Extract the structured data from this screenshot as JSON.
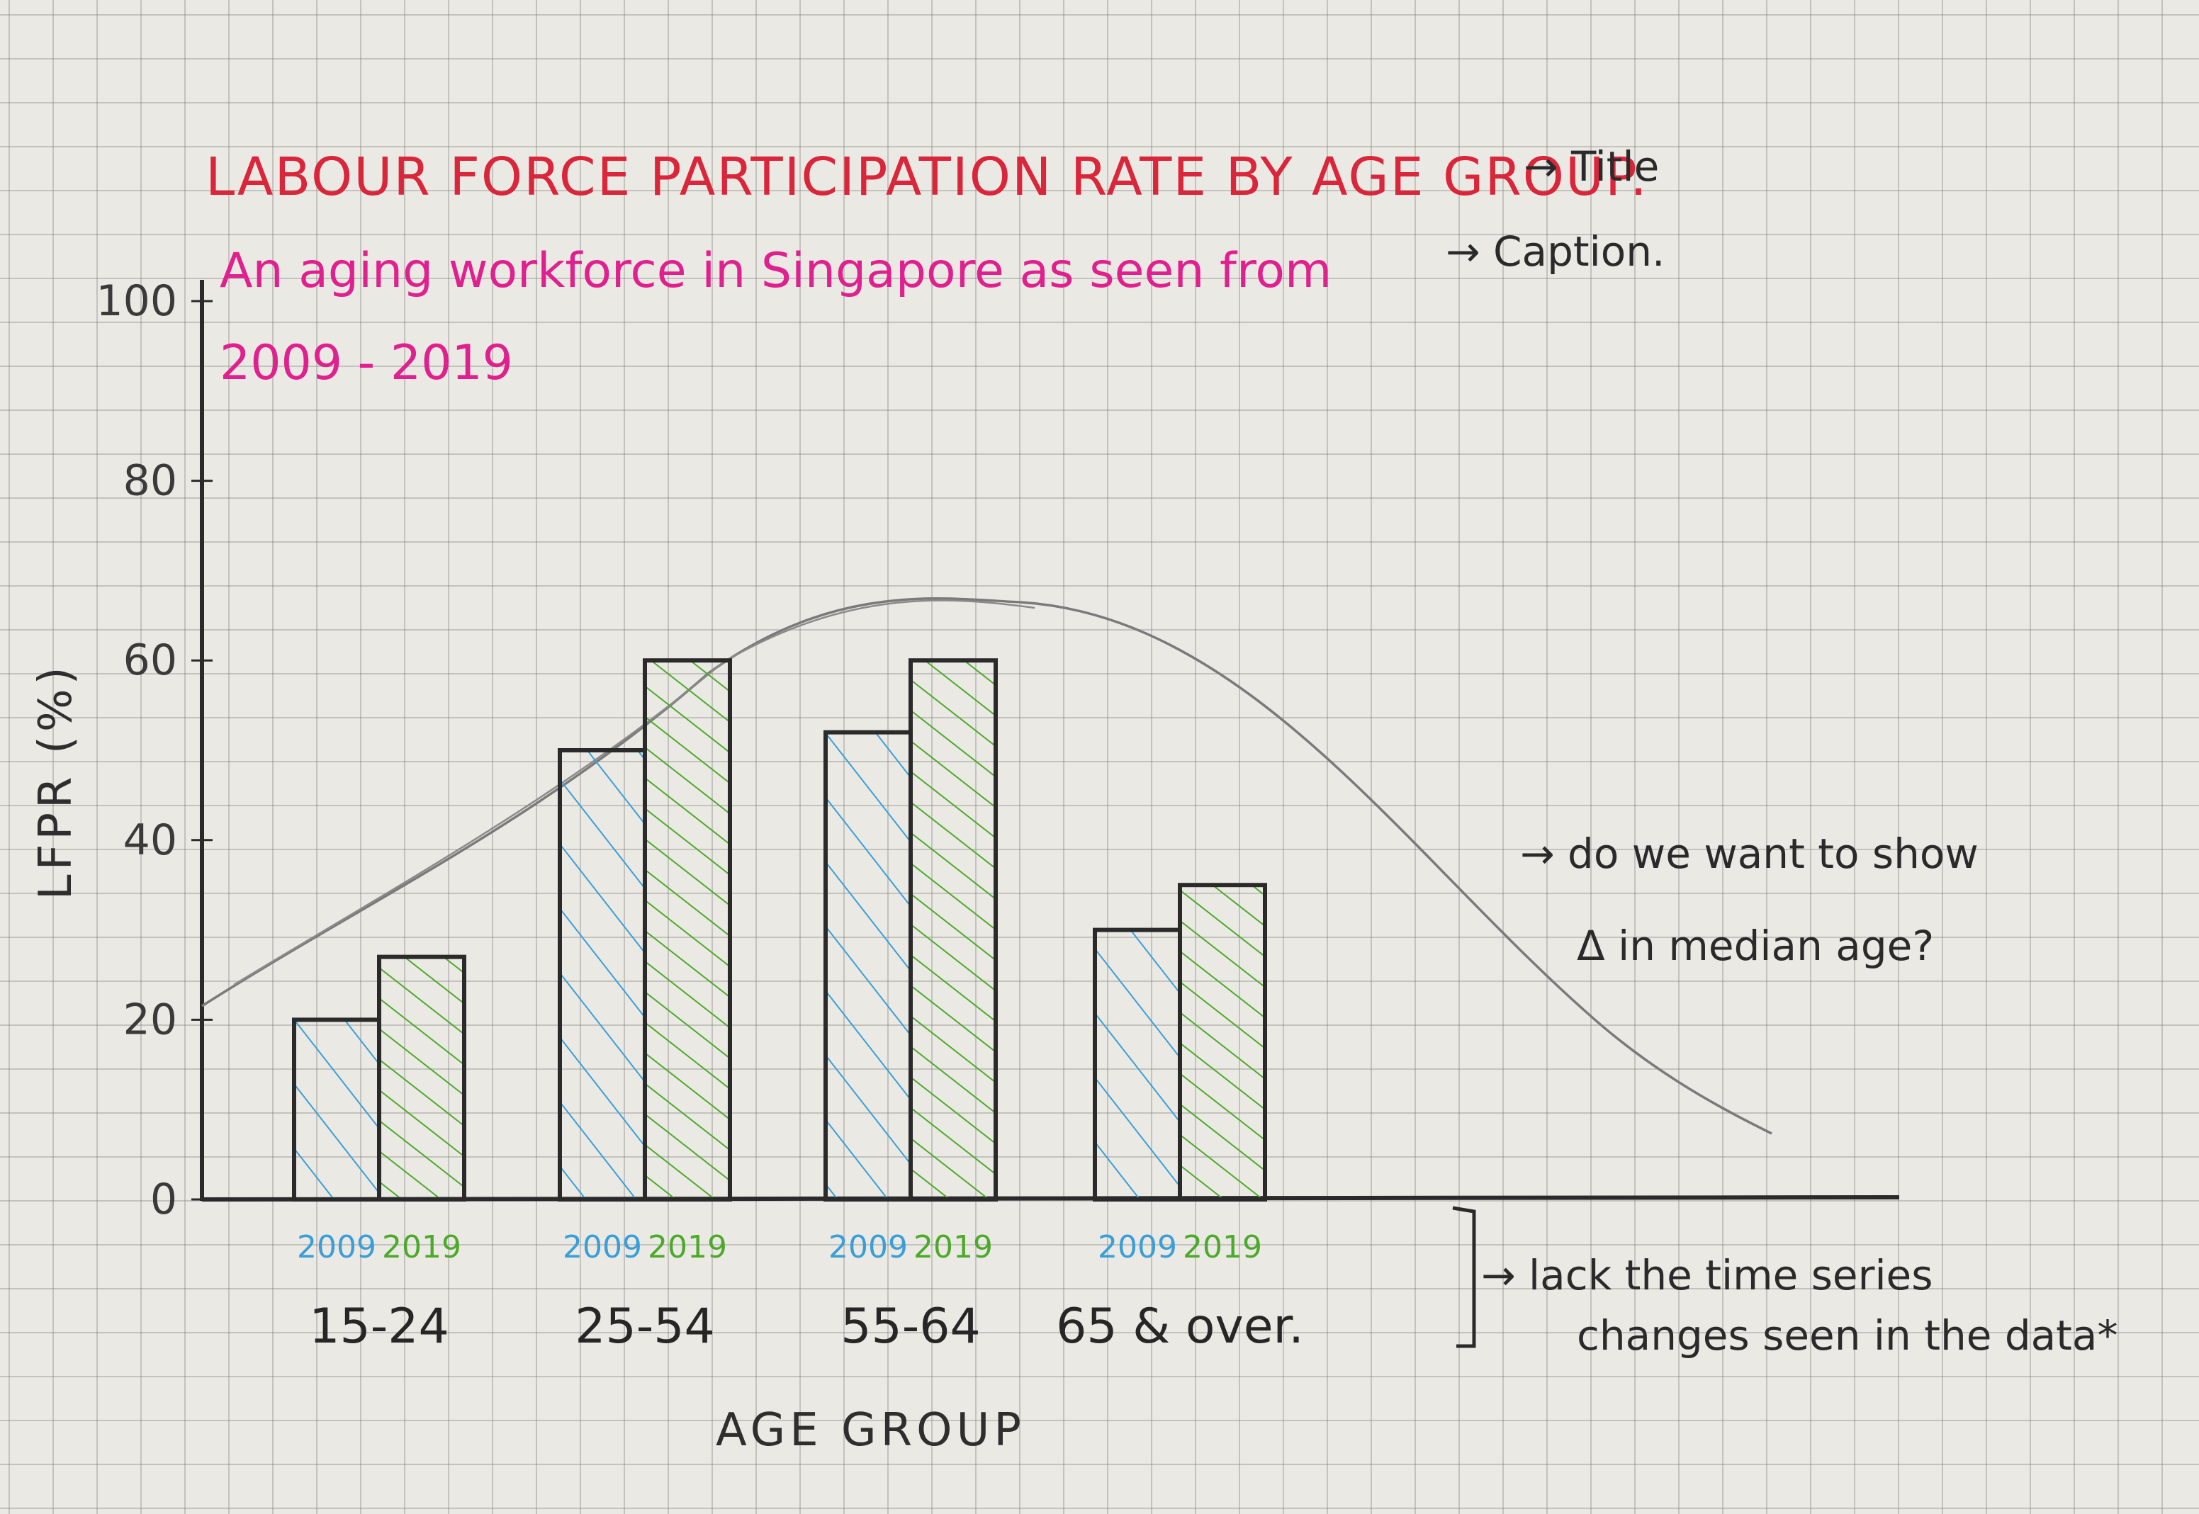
{
  "annotations": {
    "title_arrow": "→ Title",
    "caption_arrow": "→ Caption.",
    "median_note_line1": "→ do we want to show",
    "median_note_line2": "Δ in median age?",
    "timeseries_note_line1": "→ lack the time series",
    "timeseries_note_line2": "changes seen in the data*"
  },
  "colors": {
    "series_2009": "#3a9fd8",
    "series_2019": "#4caa2a",
    "title": "#d9263a",
    "caption": "#e0208e",
    "ink": "#2a2a2a",
    "pencil": "#7a7a7a"
  },
  "chart_data": {
    "type": "bar",
    "title": "LABOUR FORCE PARTICIPATION RATE BY AGE GROUP.",
    "subtitle": "An aging workforce in Singapore as seen from 2009 - 2019",
    "xlabel": "AGE GROUP",
    "ylabel": "LFPR (%)",
    "ylim": [
      0,
      100
    ],
    "yticks": [
      "0",
      "20",
      "40",
      "60",
      "80",
      "100"
    ],
    "categories": [
      "15-24",
      "25-54",
      "55-64",
      "65 & over."
    ],
    "series": [
      {
        "name": "2009",
        "values": [
          20,
          50,
          52,
          30
        ]
      },
      {
        "name": "2019",
        "values": [
          27,
          60,
          60,
          35
        ]
      }
    ],
    "trend_curve": "pencil-sketched bell curve over the bars",
    "grid": true
  }
}
